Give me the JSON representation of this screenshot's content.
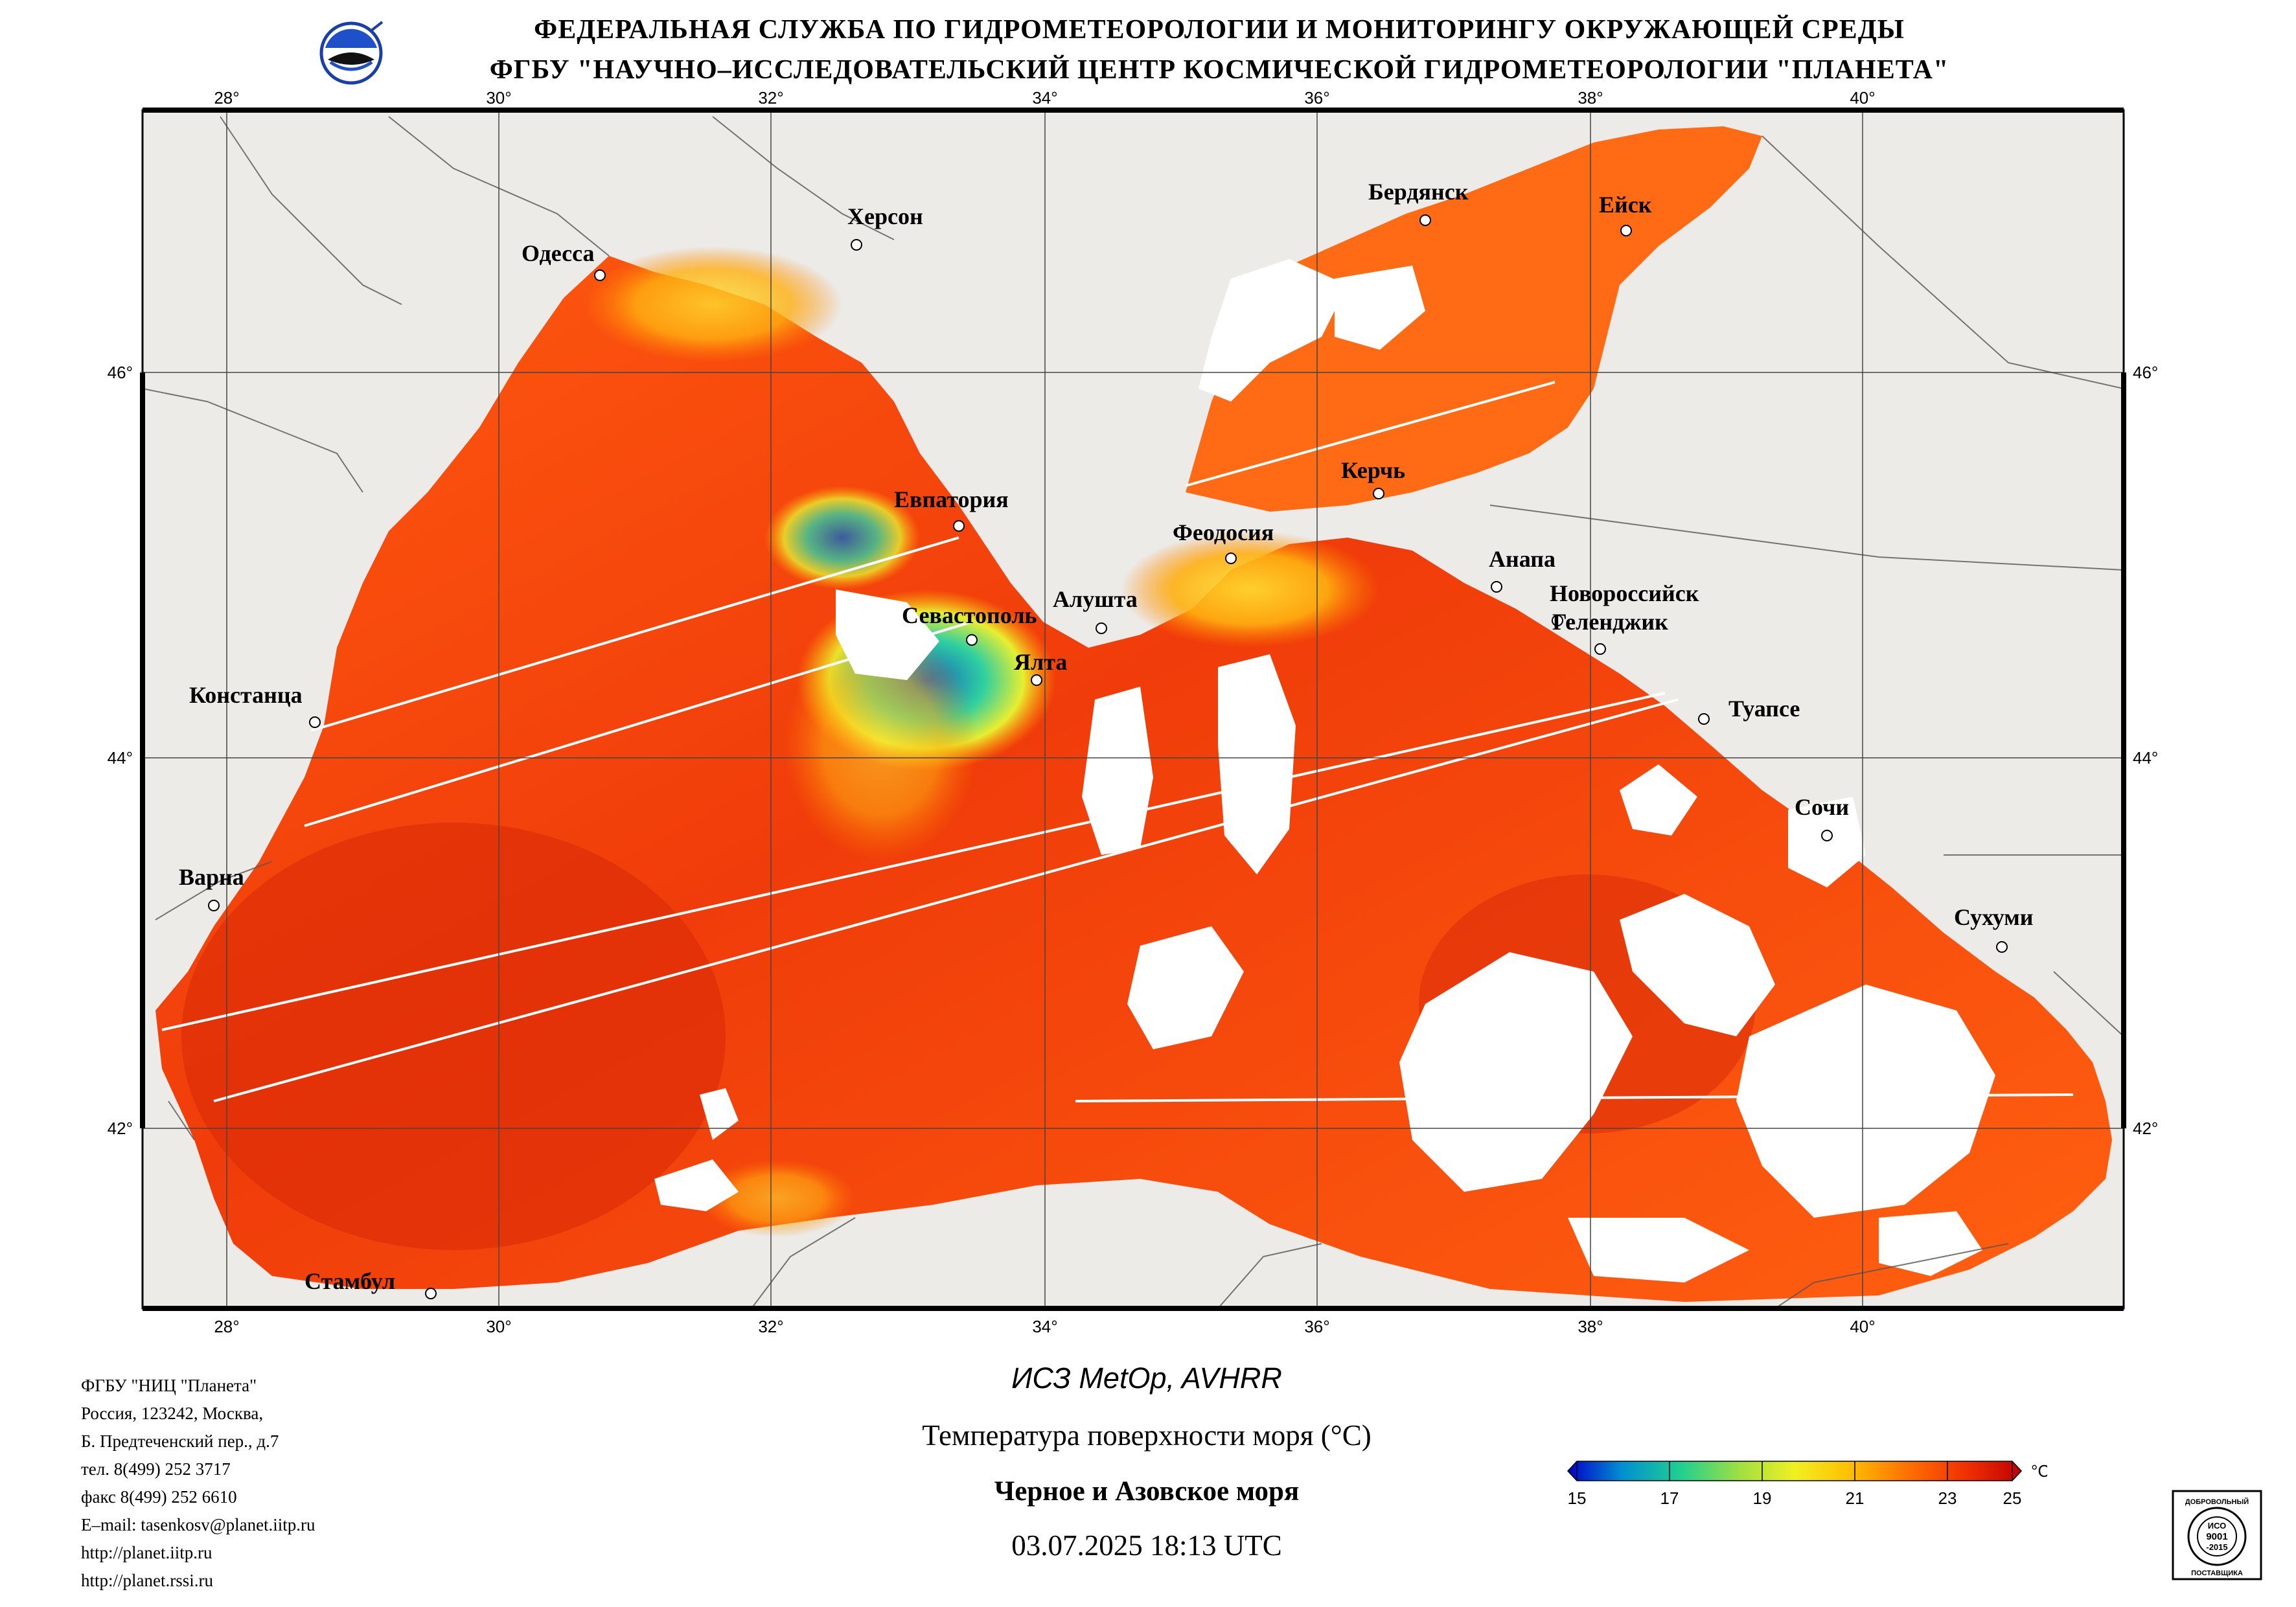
{
  "header": {
    "line1": "ФЕДЕРАЛЬНАЯ СЛУЖБА ПО ГИДРОМЕТЕОРОЛОГИИ И МОНИТОРИНГУ ОКРУЖАЮЩЕЙ СРЕДЫ",
    "line2": "ФГБУ \"НАУЧНО–ИССЛЕДОВАТЕЛЬСКИЙ ЦЕНТР КОСМИЧЕСКОЙ ГИДРОМЕТЕОРОЛОГИИ \"ПЛАНЕТА\""
  },
  "map": {
    "lon_labels": [
      "28°",
      "30°",
      "32°",
      "34°",
      "36°",
      "38°",
      "40°"
    ],
    "lat_labels": [
      "46°",
      "44°",
      "42°"
    ],
    "land_color": "#ecebe7",
    "cloud_color": "#ffffff",
    "cities": [
      {
        "name": "Одесса"
      },
      {
        "name": "Херсон"
      },
      {
        "name": "Бердянск"
      },
      {
        "name": "Ейск"
      },
      {
        "name": "Евпатория"
      },
      {
        "name": "Керчь"
      },
      {
        "name": "Феодосия"
      },
      {
        "name": "Анапа"
      },
      {
        "name": "Новороссийск"
      },
      {
        "name": "Геленджик"
      },
      {
        "name": "Алушта"
      },
      {
        "name": "Севастополь"
      },
      {
        "name": "Ялта"
      },
      {
        "name": "Констанца"
      },
      {
        "name": "Туапсе"
      },
      {
        "name": "Сочи"
      },
      {
        "name": "Варна"
      },
      {
        "name": "Сухуми"
      },
      {
        "name": "Стамбул"
      }
    ]
  },
  "info": {
    "lines": [
      "ФГБУ \"НИЦ \"Планета\"",
      "Россия, 123242, Москва,",
      "Б. Предтеченский пер., д.7",
      "тел. 8(499) 252 3717",
      "факс 8(499) 252 6610",
      "E–mail: tasenkosv@planet.iitp.ru",
      "http://planet.iitp.ru",
      "http://planet.rssi.ru"
    ]
  },
  "caption": {
    "satellite": "ИСЗ MetOp, AVHRR",
    "parameter": "Температура поверхности моря (°C)",
    "region": "Черное и Азовское моря",
    "datetime": "03.07.2025 18:13 UTC"
  },
  "legend": {
    "unit": "°C",
    "ticks": [
      "15",
      "17",
      "19",
      "21",
      "23",
      "25"
    ],
    "colors": [
      "#0000c8",
      "#0090d0",
      "#20d090",
      "#a0e040",
      "#f0f020",
      "#ffc000",
      "#ff7000",
      "#f03000",
      "#c00000"
    ]
  },
  "certificate": {
    "top_text": "ДОБРОВОЛЬНЫЙ",
    "mid_text": "ИСО",
    "std1": "9001",
    "std2": "-2015",
    "bottom_text": "ПОСТАВЩИКА"
  }
}
